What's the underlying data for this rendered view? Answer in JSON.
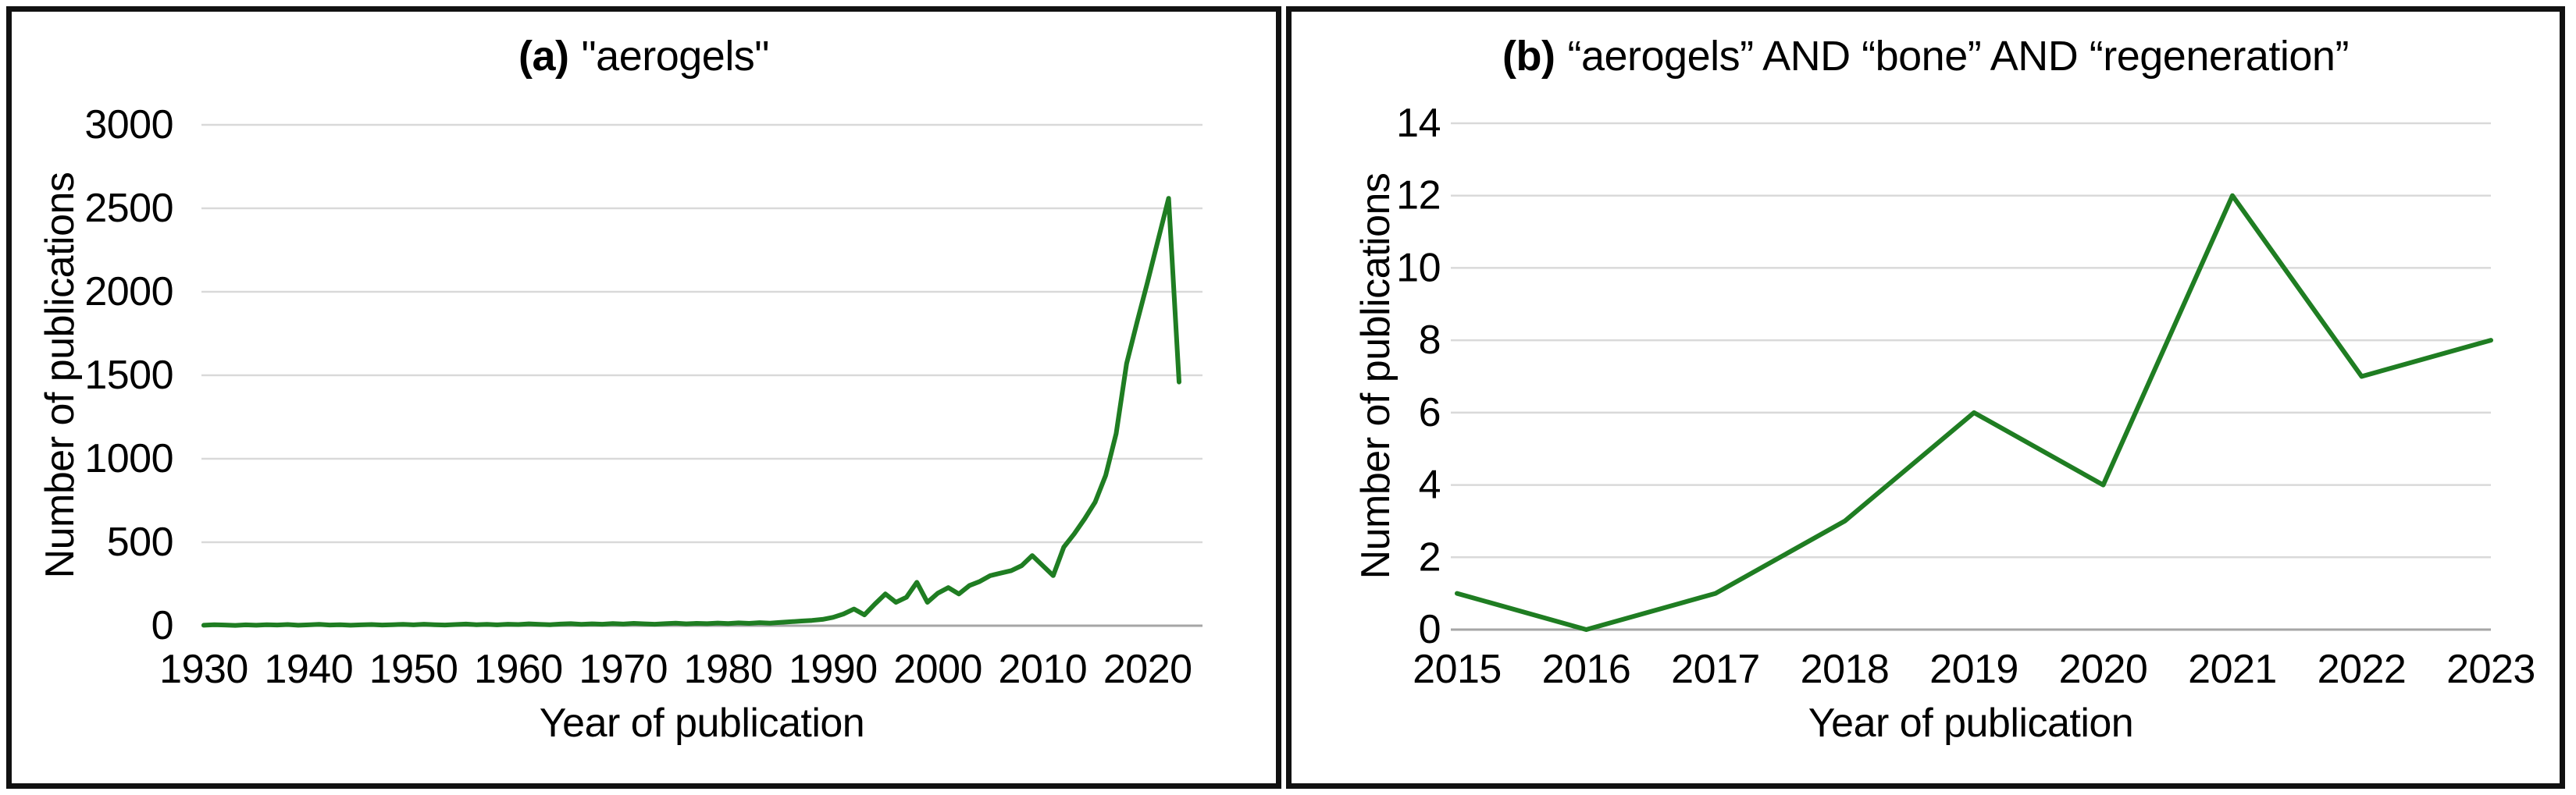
{
  "figure": {
    "background": "#ffffff",
    "panel_border_color": "#111111",
    "series_color": "#1f7d22",
    "gridline_color": "#d9d9d9",
    "axisline_color": "#a6a6a6",
    "text_color": "#000000"
  },
  "chart_data": [
    {
      "id": "a",
      "type": "line",
      "title_prefix": "(a)",
      "title": "\"aerogels\"",
      "xlabel": "Year of publication",
      "ylabel": "Number of publications",
      "legend": "none",
      "grid": "horizontal",
      "ylim": [
        0,
        3000
      ],
      "yticks": [
        0,
        500,
        1000,
        1500,
        2000,
        2500,
        3000
      ],
      "xticks": [
        1930,
        1940,
        1950,
        1960,
        1970,
        1980,
        1990,
        2000,
        2010,
        2020
      ],
      "x": [
        1930,
        1931,
        1932,
        1933,
        1934,
        1935,
        1936,
        1937,
        1938,
        1939,
        1940,
        1941,
        1942,
        1943,
        1944,
        1945,
        1946,
        1947,
        1948,
        1949,
        1950,
        1951,
        1952,
        1953,
        1954,
        1955,
        1956,
        1957,
        1958,
        1959,
        1960,
        1961,
        1962,
        1963,
        1964,
        1965,
        1966,
        1967,
        1968,
        1969,
        1970,
        1971,
        1972,
        1973,
        1974,
        1975,
        1976,
        1977,
        1978,
        1979,
        1980,
        1981,
        1982,
        1983,
        1984,
        1985,
        1986,
        1987,
        1988,
        1989,
        1990,
        1991,
        1992,
        1993,
        1994,
        1995,
        1996,
        1997,
        1998,
        1999,
        2000,
        2001,
        2002,
        2003,
        2004,
        2005,
        2006,
        2007,
        2008,
        2009,
        2010,
        2011,
        2012,
        2013,
        2014,
        2015,
        2016,
        2017,
        2018,
        2019,
        2020,
        2021,
        2022,
        2023
      ],
      "values": [
        3,
        6,
        4,
        2,
        5,
        3,
        6,
        4,
        7,
        3,
        5,
        8,
        4,
        6,
        3,
        5,
        7,
        4,
        6,
        8,
        5,
        9,
        6,
        4,
        7,
        10,
        6,
        8,
        5,
        9,
        7,
        11,
        8,
        6,
        10,
        12,
        8,
        11,
        9,
        13,
        10,
        14,
        11,
        9,
        12,
        15,
        11,
        14,
        12,
        16,
        13,
        17,
        14,
        18,
        15,
        20,
        24,
        28,
        32,
        38,
        50,
        70,
        100,
        65,
        130,
        190,
        140,
        170,
        260,
        140,
        195,
        228,
        190,
        240,
        265,
        300,
        315,
        330,
        360,
        420,
        360,
        300,
        470,
        550,
        640,
        740,
        900,
        1150,
        1570,
        1820,
        2060,
        2310,
        2560,
        1460
      ]
    },
    {
      "id": "b",
      "type": "line",
      "title_prefix": "(b)",
      "title": "“aerogels” AND “bone” AND “regeneration”",
      "xlabel": "Year of publication",
      "ylabel": "Number of publications",
      "legend": "none",
      "grid": "horizontal",
      "ylim": [
        0,
        14
      ],
      "yticks": [
        0,
        2,
        4,
        6,
        8,
        10,
        12,
        14
      ],
      "xticks": [
        2015,
        2016,
        2017,
        2018,
        2019,
        2020,
        2021,
        2022,
        2023
      ],
      "x": [
        2015,
        2016,
        2017,
        2018,
        2019,
        2020,
        2021,
        2022,
        2023
      ],
      "values": [
        1,
        0,
        1,
        3,
        6,
        4,
        12,
        7,
        8
      ]
    }
  ]
}
